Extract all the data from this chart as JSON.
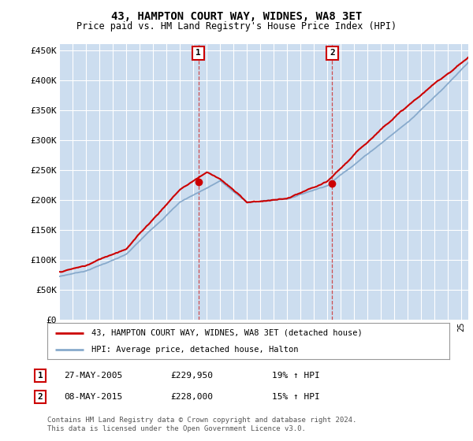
{
  "title": "43, HAMPTON COURT WAY, WIDNES, WA8 3ET",
  "subtitle": "Price paid vs. HM Land Registry's House Price Index (HPI)",
  "ylabel_ticks": [
    "£0",
    "£50K",
    "£100K",
    "£150K",
    "£200K",
    "£250K",
    "£300K",
    "£350K",
    "£400K",
    "£450K"
  ],
  "ytick_values": [
    0,
    50000,
    100000,
    150000,
    200000,
    250000,
    300000,
    350000,
    400000,
    450000
  ],
  "ylim": [
    0,
    460000
  ],
  "xlim_start": 1995,
  "xlim_end": 2025.5,
  "transaction1": {
    "date_num": 2005.38,
    "price": 229950,
    "label": "1"
  },
  "transaction2": {
    "date_num": 2015.35,
    "price": 228000,
    "label": "2"
  },
  "legend_line1": "43, HAMPTON COURT WAY, WIDNES, WA8 3ET (detached house)",
  "legend_line2": "HPI: Average price, detached house, Halton",
  "table_rows": [
    {
      "num": "1",
      "date": "27-MAY-2005",
      "price": "£229,950",
      "change": "19% ↑ HPI"
    },
    {
      "num": "2",
      "date": "08-MAY-2015",
      "price": "£228,000",
      "change": "15% ↑ HPI"
    }
  ],
  "footnote": "Contains HM Land Registry data © Crown copyright and database right 2024.\nThis data is licensed under the Open Government Licence v3.0.",
  "vline1_x": 2005.38,
  "vline2_x": 2015.35,
  "red_line_color": "#cc0000",
  "blue_line_color": "#88aacc",
  "vline_color": "#cc3333",
  "plot_bg_color": "#ccddef"
}
